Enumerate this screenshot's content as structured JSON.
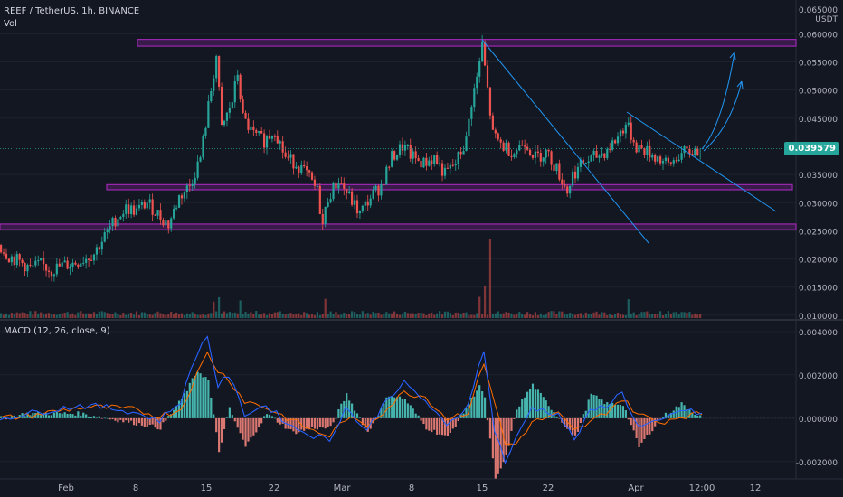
{
  "symbol_legend": "REEF / TetherUS, 1h, BINANCE",
  "volume_label": "Vol",
  "macd_label": "MACD (12, 26, close, 9)",
  "currency_top": "0.065000",
  "currency_unit": "USDT",
  "last_price": "0.039579",
  "price_axis": [
    "0.060000",
    "0.055000",
    "0.050000",
    "0.045000",
    "0.035000",
    "0.030000",
    "0.025000",
    "0.020000",
    "0.015000",
    "0.010000"
  ],
  "macd_axis": [
    "0.004000",
    "0.002000",
    "0.000000",
    "-0.002000"
  ],
  "time_axis": [
    "Feb",
    "8",
    "15",
    "22",
    "Mar",
    "8",
    "15",
    "22",
    "Apr",
    "12:00",
    "12"
  ],
  "colors": {
    "background": "#131722",
    "up": "#26a69a",
    "down": "#ef5350",
    "zone": "#9c27b0",
    "trendline": "#2196f3",
    "macd_line": "#2962ff",
    "signal_line": "#ff6d00"
  },
  "chart_data": [
    {
      "type": "candlestick",
      "title": "REEF / TetherUS, 1h, BINANCE",
      "ylim": [
        0.0095,
        0.066
      ],
      "x_labels": [
        "Feb",
        "8",
        "15",
        "22",
        "Mar",
        "8",
        "15",
        "22",
        "Apr",
        "12:00",
        "12"
      ],
      "close_path": [
        [
          0,
          0.0225
        ],
        [
          4,
          0.0205
        ],
        [
          8,
          0.0195
        ],
        [
          12,
          0.0183
        ],
        [
          16,
          0.019
        ],
        [
          20,
          0.018
        ],
        [
          24,
          0.0188
        ],
        [
          28,
          0.0192
        ],
        [
          32,
          0.02
        ],
        [
          36,
          0.021
        ],
        [
          40,
          0.024
        ],
        [
          44,
          0.027
        ],
        [
          48,
          0.029
        ],
        [
          52,
          0.0285
        ],
        [
          56,
          0.03
        ],
        [
          60,
          0.028
        ],
        [
          64,
          0.026
        ],
        [
          68,
          0.031
        ],
        [
          72,
          0.033
        ],
        [
          76,
          0.038
        ],
        [
          80,
          0.05
        ],
        [
          82,
          0.056
        ],
        [
          84,
          0.043
        ],
        [
          88,
          0.048
        ],
        [
          90,
          0.053
        ],
        [
          92,
          0.045
        ],
        [
          96,
          0.042
        ],
        [
          100,
          0.041
        ],
        [
          104,
          0.043
        ],
        [
          108,
          0.038
        ],
        [
          112,
          0.037
        ],
        [
          116,
          0.035
        ],
        [
          120,
          0.032
        ],
        [
          122,
          0.026
        ],
        [
          124,
          0.031
        ],
        [
          128,
          0.034
        ],
        [
          132,
          0.031
        ],
        [
          136,
          0.028
        ],
        [
          140,
          0.031
        ],
        [
          144,
          0.033
        ],
        [
          148,
          0.038
        ],
        [
          152,
          0.04
        ],
        [
          156,
          0.038
        ],
        [
          160,
          0.037
        ],
        [
          164,
          0.038
        ],
        [
          168,
          0.035
        ],
        [
          172,
          0.037
        ],
        [
          176,
          0.041
        ],
        [
          178,
          0.048
        ],
        [
          180,
          0.052
        ],
        [
          182,
          0.058
        ],
        [
          184,
          0.05
        ],
        [
          186,
          0.042
        ],
        [
          190,
          0.04
        ],
        [
          194,
          0.039
        ],
        [
          198,
          0.041
        ],
        [
          202,
          0.038
        ],
        [
          206,
          0.039
        ],
        [
          210,
          0.036
        ],
        [
          214,
          0.032
        ],
        [
          216,
          0.035
        ],
        [
          220,
          0.037
        ],
        [
          224,
          0.038
        ],
        [
          228,
          0.039
        ],
        [
          232,
          0.041
        ],
        [
          236,
          0.044
        ],
        [
          238,
          0.042
        ],
        [
          240,
          0.04
        ],
        [
          244,
          0.039
        ],
        [
          248,
          0.038
        ],
        [
          252,
          0.0365
        ],
        [
          256,
          0.0385
        ],
        [
          260,
          0.039
        ],
        [
          264,
          0.0395
        ]
      ],
      "zones": [
        {
          "low": 0.0578,
          "high": 0.059
        },
        {
          "low": 0.0323,
          "high": 0.0332
        },
        {
          "low": 0.0252,
          "high": 0.0262
        }
      ]
    },
    {
      "type": "line",
      "title": "MACD (12, 26, close, 9)",
      "ylim": [
        -0.0028,
        0.0045
      ],
      "series": [
        {
          "name": "MACD",
          "path": [
            [
              0,
              0.0
            ],
            [
              10,
              0.0002
            ],
            [
              20,
              0.0004
            ],
            [
              30,
              0.0006
            ],
            [
              40,
              0.0005
            ],
            [
              50,
              0.0003
            ],
            [
              60,
              -0.0001
            ],
            [
              68,
              0.0008
            ],
            [
              74,
              0.003
            ],
            [
              78,
              0.0038
            ],
            [
              82,
              0.0015
            ],
            [
              86,
              0.002
            ],
            [
              92,
              0.0002
            ],
            [
              100,
              0.0006
            ],
            [
              110,
              -0.0004
            ],
            [
              118,
              -0.0008
            ],
            [
              124,
              -0.001
            ],
            [
              130,
              0.0005
            ],
            [
              138,
              -0.0006
            ],
            [
              146,
              0.001
            ],
            [
              152,
              0.0016
            ],
            [
              160,
              0.0008
            ],
            [
              168,
              -0.0004
            ],
            [
              176,
              0.0006
            ],
            [
              180,
              0.0025
            ],
            [
              182,
              0.003
            ],
            [
              186,
              -0.0005
            ],
            [
              190,
              -0.002
            ],
            [
              194,
              -0.001
            ],
            [
              200,
              0.0005
            ],
            [
              210,
              0.0002
            ],
            [
              216,
              -0.001
            ],
            [
              222,
              0.0003
            ],
            [
              228,
              0.0006
            ],
            [
              234,
              0.0012
            ],
            [
              240,
              -0.0004
            ],
            [
              248,
              -0.0002
            ],
            [
              256,
              0.0004
            ],
            [
              264,
              0.0002
            ]
          ]
        },
        {
          "name": "Signal",
          "path": [
            [
              0,
              0.0
            ],
            [
              10,
              0.0001
            ],
            [
              20,
              0.0003
            ],
            [
              30,
              0.0005
            ],
            [
              40,
              0.0005
            ],
            [
              50,
              0.0004
            ],
            [
              60,
              0.0001
            ],
            [
              68,
              0.0004
            ],
            [
              74,
              0.002
            ],
            [
              78,
              0.003
            ],
            [
              82,
              0.0022
            ],
            [
              86,
              0.0018
            ],
            [
              92,
              0.0008
            ],
            [
              100,
              0.0005
            ],
            [
              110,
              -0.0001
            ],
            [
              118,
              -0.0006
            ],
            [
              124,
              -0.0008
            ],
            [
              130,
              0.0
            ],
            [
              138,
              -0.0003
            ],
            [
              146,
              0.0005
            ],
            [
              152,
              0.0012
            ],
            [
              160,
              0.001
            ],
            [
              168,
              0.0
            ],
            [
              176,
              0.0003
            ],
            [
              180,
              0.0018
            ],
            [
              182,
              0.0026
            ],
            [
              186,
              0.0008
            ],
            [
              190,
              -0.0012
            ],
            [
              194,
              -0.0012
            ],
            [
              200,
              -0.0002
            ],
            [
              210,
              0.0002
            ],
            [
              216,
              -0.0006
            ],
            [
              222,
              -0.0002
            ],
            [
              228,
              0.0003
            ],
            [
              234,
              0.0009
            ],
            [
              240,
              0.0002
            ],
            [
              248,
              -0.0002
            ],
            [
              256,
              0.0001
            ],
            [
              264,
              0.0002
            ]
          ]
        }
      ]
    }
  ]
}
